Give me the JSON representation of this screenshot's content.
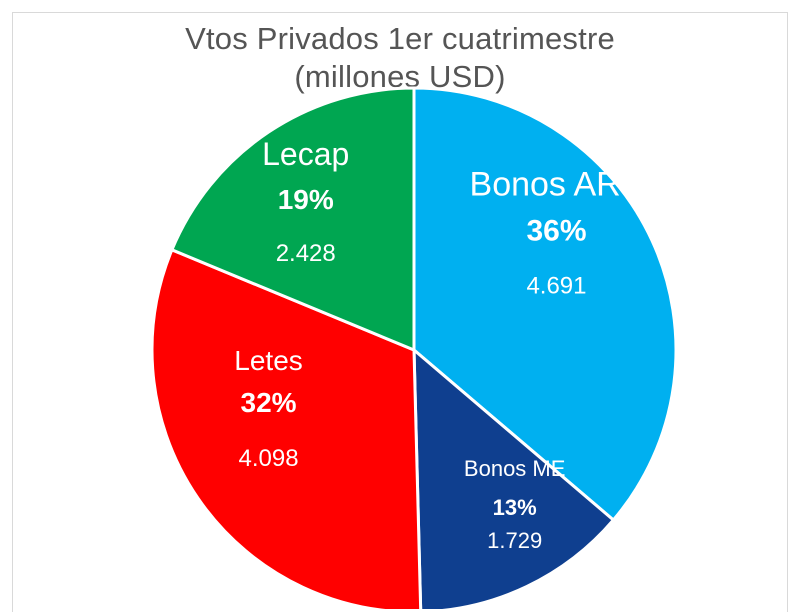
{
  "chart_data": {
    "type": "pie",
    "title": "Vtos Privados 1er cuatrimestre",
    "subtitle": "(millones USD)",
    "categories": [
      "Bonos ARS",
      "Bonos ME",
      "Letes",
      "Lecap"
    ],
    "values": [
      4691,
      1729,
      4098,
      2428
    ],
    "percent_labels": [
      "36%",
      "13%",
      "32%",
      "19%"
    ],
    "value_labels": [
      "4.691",
      "1.729",
      "4.098",
      "2.428"
    ],
    "colors": [
      "#00b0f0",
      "#0f3f8f",
      "#ff0000",
      "#00a651"
    ],
    "start_angle_deg": 0,
    "direction": "clockwise",
    "legend": "none",
    "data_labels": "inside"
  }
}
